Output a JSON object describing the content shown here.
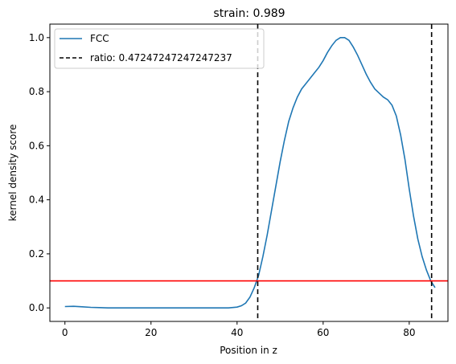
{
  "chart_data": {
    "type": "line",
    "title": "strain: 0.989",
    "xlabel": "Position in z",
    "ylabel": "kernel density score",
    "xlim": [
      -3.5,
      89
    ],
    "ylim": [
      -0.05,
      1.05
    ],
    "xticks": [
      0,
      20,
      40,
      60,
      80
    ],
    "yticks": [
      0.0,
      0.2,
      0.4,
      0.6,
      0.8,
      1.0
    ],
    "xtick_labels": [
      "0",
      "20",
      "40",
      "60",
      "80"
    ],
    "ytick_labels": [
      "0.0",
      "0.2",
      "0.4",
      "0.6",
      "0.8",
      "1.0"
    ],
    "grid": false,
    "legend_position": "upper-left",
    "series": [
      {
        "name": "FCC",
        "color": "#1f77b4",
        "x": [
          0,
          2,
          4,
          6,
          8,
          10,
          15,
          20,
          25,
          30,
          35,
          38,
          40,
          41,
          42,
          43,
          44,
          45,
          46,
          47,
          48,
          49,
          50,
          51,
          52,
          53,
          54,
          55,
          56,
          57,
          58,
          59,
          60,
          61,
          62,
          63,
          64,
          65,
          66,
          67,
          68,
          69,
          70,
          71,
          72,
          73,
          74,
          75,
          76,
          77,
          78,
          79,
          80,
          81,
          82,
          83,
          84,
          85,
          86
        ],
        "y": [
          0.005,
          0.006,
          0.004,
          0.002,
          0.001,
          0.0,
          0.0,
          0.0,
          0.0,
          0.0,
          0.0,
          0.0,
          0.003,
          0.008,
          0.018,
          0.04,
          0.075,
          0.12,
          0.19,
          0.27,
          0.36,
          0.45,
          0.54,
          0.62,
          0.69,
          0.74,
          0.78,
          0.81,
          0.83,
          0.85,
          0.87,
          0.89,
          0.915,
          0.945,
          0.97,
          0.99,
          1.0,
          1.0,
          0.99,
          0.965,
          0.935,
          0.9,
          0.865,
          0.835,
          0.81,
          0.795,
          0.78,
          0.77,
          0.75,
          0.71,
          0.64,
          0.55,
          0.44,
          0.34,
          0.255,
          0.19,
          0.14,
          0.1,
          0.075
        ]
      },
      {
        "name": "ratio: 0.47247247247247237",
        "color": "#000000",
        "style": "dashed",
        "vlines": [
          44.8,
          85.2
        ]
      },
      {
        "color": "#ff0000",
        "hline": 0.1
      }
    ]
  }
}
